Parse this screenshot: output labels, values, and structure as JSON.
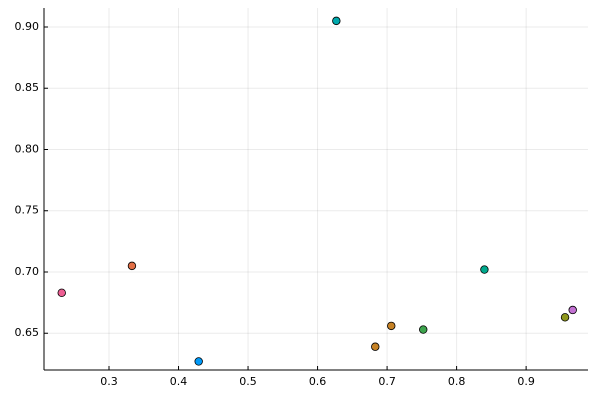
{
  "chart_data": {
    "type": "scatter",
    "x": [
      0.232,
      0.333,
      0.429,
      0.627,
      0.683,
      0.706,
      0.752,
      0.84,
      0.956,
      0.967
    ],
    "values": [
      0.683,
      0.705,
      0.627,
      0.905,
      0.639,
      0.656,
      0.653,
      0.702,
      0.663,
      0.669
    ],
    "colors": [
      "#ed5e93",
      "#e26f46",
      "#009af9",
      "#00a9ad",
      "#c68225",
      "#c68225",
      "#3da44d",
      "#00a98d",
      "#8e971d",
      "#c271d2"
    ],
    "xlim": [
      0.2065,
      0.989
    ],
    "ylim": [
      0.62,
      0.9155
    ],
    "xticks": [
      0.3,
      0.4,
      0.5,
      0.6,
      0.7,
      0.8,
      0.9
    ],
    "yticks": [
      {
        "value": 0.65,
        "label": "0.65"
      },
      {
        "value": 0.7,
        "label": "0.70"
      },
      {
        "value": 0.75,
        "label": "0.75"
      },
      {
        "value": 0.8,
        "label": "0.80"
      },
      {
        "value": 0.85,
        "label": "0.85"
      },
      {
        "value": 0.9,
        "label": "0.90"
      }
    ],
    "grid": true
  }
}
